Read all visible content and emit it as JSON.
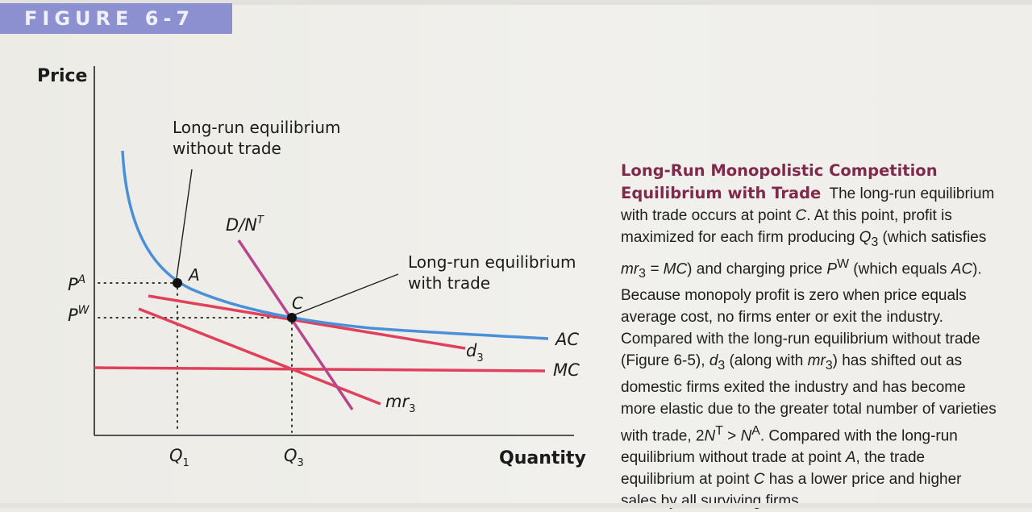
{
  "figure_tag": "FIGURE 6-7",
  "colors": {
    "ac_curve": "#4a90d9",
    "red_lines": "#e0405a",
    "demand_line": "#b8468c",
    "tag_bg": "#8c8fd0",
    "caption_title": "#7f2a4c"
  },
  "diagram": {
    "y_axis_title": "Price",
    "x_axis_title": "Quantity",
    "price_labels": {
      "pa": "A",
      "pw": "W"
    },
    "quantity_labels": {
      "q1": "1",
      "q3": "3"
    },
    "annotations": {
      "no_trade_line1": "Long-run equilibrium",
      "no_trade_line2": "without trade",
      "trade_line1": "Long-run equilibrium",
      "trade_line2": "with trade"
    },
    "points": {
      "a": "A",
      "c": "C"
    },
    "curves": {
      "ac": "AC",
      "mc": "MC",
      "d3": "d",
      "d3_sub": "3",
      "mr3": "mr",
      "mr3_sub": "3",
      "demand": "D/N",
      "demand_sup": "T"
    }
  },
  "caption": {
    "title": "Long-Run Monopolistic Competition Equilibrium with Trade",
    "p1": "The long-run equilibrium with trade occurs at point ",
    "p1_C": "C",
    "p2": ". At this point, profit is maximized for each firm producing ",
    "q3_main": "Q",
    "q3_sub": "3",
    "p3": " (which satisfies ",
    "mr_main": "mr",
    "mr_sub": "3",
    "eq_mc": " = MC",
    "p4": ") and charging price ",
    "pw_main": "P",
    "pw_sup": "W",
    "p5": " (which equals ",
    "ac_text": "AC",
    "p6": "). Because monopoly profit is zero when price equals average cost, no firms enter or exit the industry. Compared with the long-run equilibrium without trade (Figure 6-5), ",
    "d3_main": "d",
    "d3_sub": "3",
    "p7": " (along with ",
    "mr2_main": "mr",
    "mr2_sub": "3",
    "p8": ") has shifted out as domestic firms exited the industry and has become more elastic due to the greater total number of varieties with trade, 2",
    "n_main": "N",
    "n_sup": "T",
    "gt": " > ",
    "na_main": "N",
    "na_sup": "A",
    "p9": ". Compared with the long-run equilibrium without trade at point ",
    "pa_letter": "A",
    "p10": ", the trade equilibrium at point ",
    "pc_letter": "C",
    "p11": " has a lower price and higher sales by all surviving firms."
  }
}
